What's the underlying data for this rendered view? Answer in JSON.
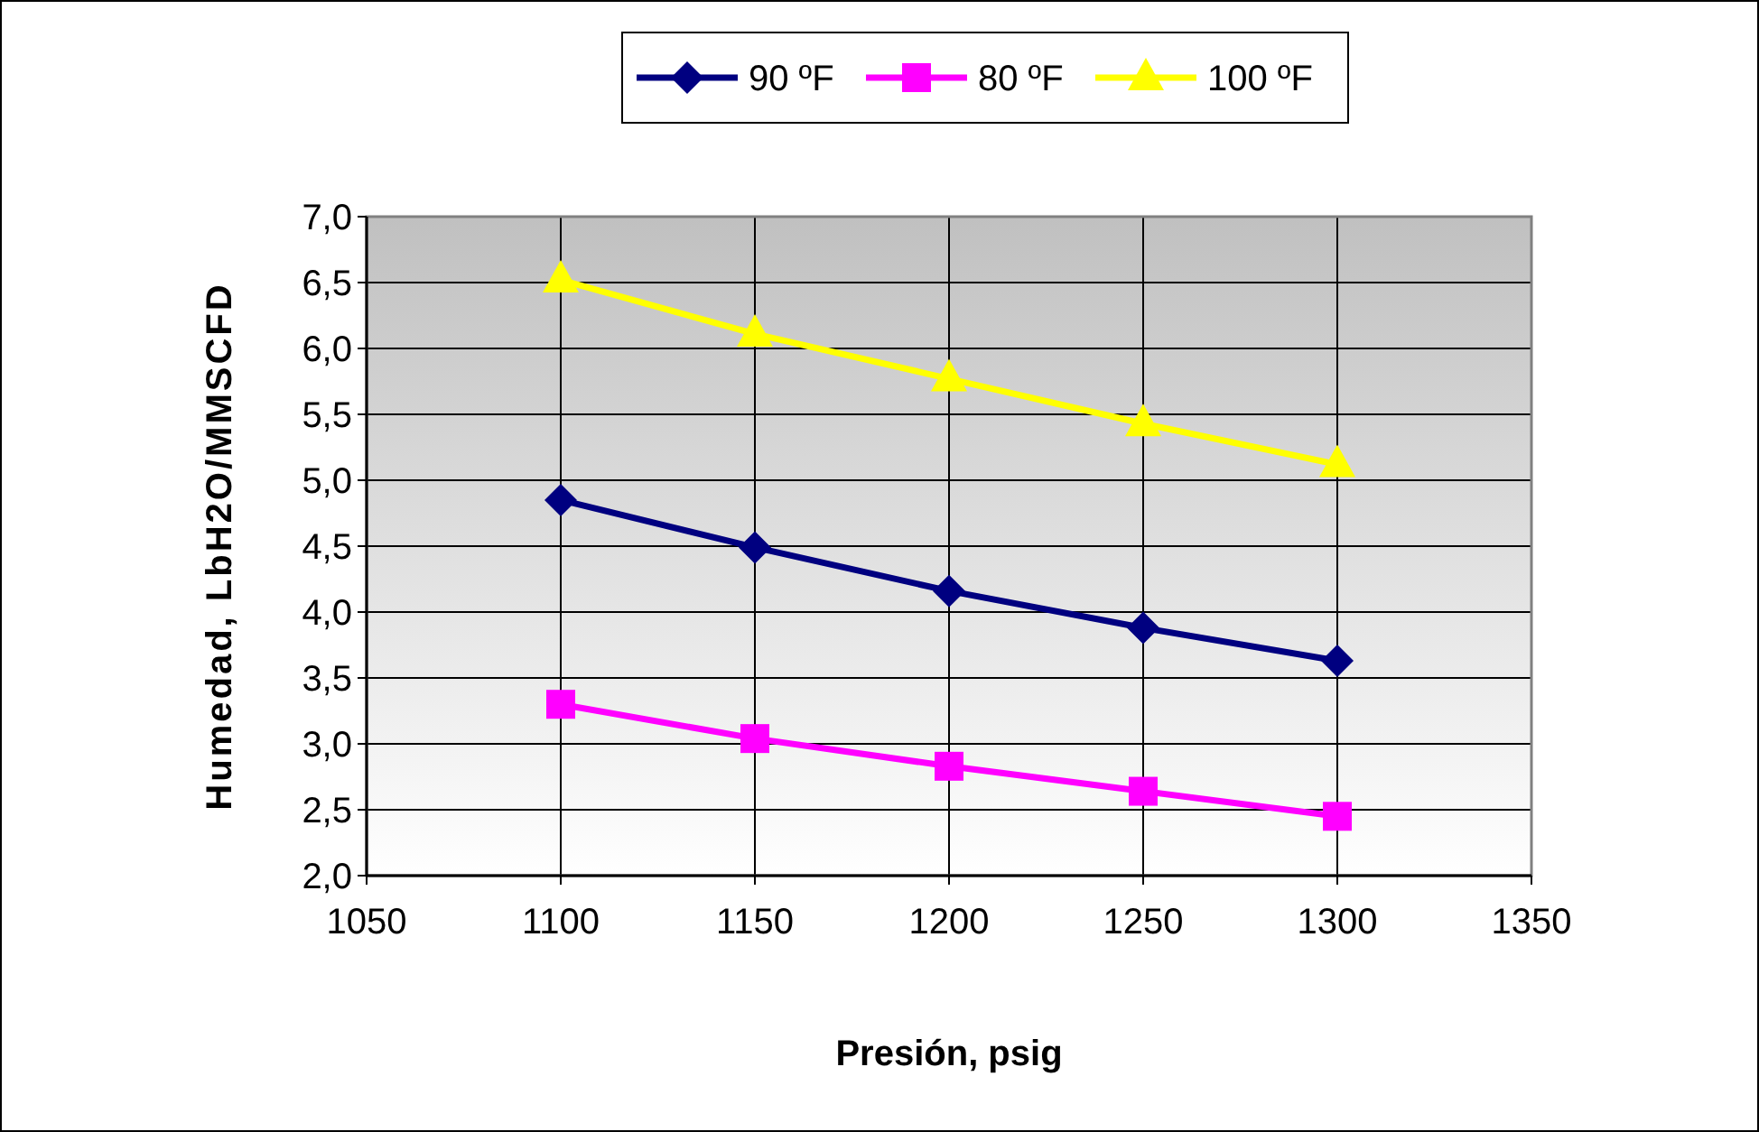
{
  "chart_data": {
    "type": "line",
    "xlabel": "Presión, psig",
    "ylabel": "Humedad, LbH2O/MMSCFD",
    "x": [
      1100,
      1150,
      1200,
      1250,
      1300
    ],
    "series": [
      {
        "name": "90 ºF",
        "color": "#000080",
        "marker": "diamond",
        "values": [
          4.85,
          4.49,
          4.16,
          3.88,
          3.63
        ]
      },
      {
        "name": "80 ºF",
        "color": "#ff00ff",
        "marker": "square",
        "values": [
          3.3,
          3.04,
          2.83,
          2.64,
          2.45
        ]
      },
      {
        "name": "100 ºF",
        "color": "#ffff00",
        "marker": "triangle",
        "values": [
          6.52,
          6.11,
          5.77,
          5.43,
          5.12
        ]
      }
    ],
    "xlim": [
      1050,
      1350
    ],
    "xticks": [
      1050,
      1100,
      1150,
      1200,
      1250,
      1300,
      1350
    ],
    "ylim": [
      2,
      7
    ],
    "yticks": [
      {
        "value": 2,
        "label": "2,0"
      },
      {
        "value": 2.5,
        "label": "2,5"
      },
      {
        "value": 3,
        "label": "3,0"
      },
      {
        "value": 3.5,
        "label": "3,5"
      },
      {
        "value": 4,
        "label": "4,0"
      },
      {
        "value": 4.5,
        "label": "4,5"
      },
      {
        "value": 5,
        "label": "5,0"
      },
      {
        "value": 5.5,
        "label": "5,5"
      },
      {
        "value": 6,
        "label": "6,0"
      },
      {
        "value": 6.5,
        "label": "6,5"
      },
      {
        "value": 7,
        "label": "7,0"
      }
    ],
    "grid": true,
    "legend": "top"
  }
}
